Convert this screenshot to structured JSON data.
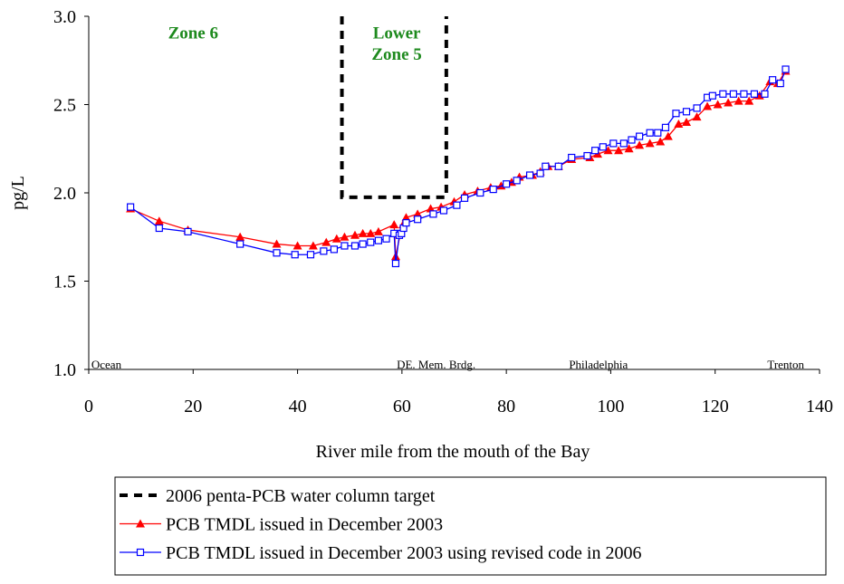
{
  "chart_data": {
    "type": "line",
    "xlabel": "River mile from the mouth of the Bay",
    "ylabel": "pg/L",
    "xlim": [
      0,
      140
    ],
    "xticks": [
      0,
      20,
      40,
      60,
      80,
      100,
      120,
      140
    ],
    "ylim": [
      1,
      3
    ],
    "yticks": [
      {
        "value": 1,
        "label": "1.0"
      },
      {
        "value": 1.5,
        "label": "1.5"
      },
      {
        "value": 2,
        "label": "2.0"
      },
      {
        "value": 2.5,
        "label": "2.5"
      },
      {
        "value": 3,
        "label": "3.0"
      }
    ],
    "annotations": [
      {
        "text": "Zone 6",
        "x": 20,
        "y": 2.9,
        "color": "#1e8a1e",
        "bold": true
      },
      {
        "text": "Lower",
        "x": 59,
        "y": 2.9,
        "color": "#1e8a1e",
        "bold": true
      },
      {
        "text": "Zone 5",
        "x": 59,
        "y": 2.78,
        "color": "#1e8a1e",
        "bold": true
      },
      {
        "text": "Ocean",
        "x": 0.5,
        "y": 1.03,
        "color": "#000000",
        "bold": false
      },
      {
        "text": "DE. Mem. Brdg.",
        "x": 59,
        "y": 1.03,
        "color": "#000000",
        "bold": false
      },
      {
        "text": "Philadelphia",
        "x": 92,
        "y": 1.03,
        "color": "#000000",
        "bold": false
      },
      {
        "text": "Trenton",
        "x": 130,
        "y": 1.03,
        "color": "#000000",
        "bold": false
      }
    ],
    "series": [
      {
        "name": "2006 penta-PCB water column target",
        "color": "#000000",
        "marker": "none",
        "dashed": true,
        "x": [
          48.5,
          48.5,
          68.5,
          68.5
        ],
        "values": [
          3.0,
          1.975,
          1.975,
          3.0
        ]
      },
      {
        "name": "PCB TMDL issued in December 2003",
        "color": "#ff0000",
        "marker": "triangle",
        "dashed": false,
        "x": [
          8,
          13.5,
          19,
          29,
          36,
          40,
          43,
          45.5,
          47.5,
          49,
          51,
          52.5,
          54,
          55.5,
          58.5,
          58.8,
          59.7,
          60.2,
          60.8,
          63,
          65.5,
          67.5,
          70,
          72,
          74.5,
          77,
          79,
          81,
          82.5,
          85,
          86.5,
          88,
          90,
          92.5,
          96,
          97.5,
          99.5,
          101.5,
          103.5,
          105.5,
          107.5,
          109.5,
          111,
          113,
          114.5,
          116.5,
          118.5,
          120.5,
          122.5,
          124.5,
          126.5,
          128.5,
          130.5,
          132,
          133.5
        ],
        "values": [
          1.91,
          1.84,
          1.79,
          1.75,
          1.71,
          1.7,
          1.7,
          1.72,
          1.74,
          1.75,
          1.76,
          1.77,
          1.77,
          1.78,
          1.82,
          1.64,
          1.77,
          1.82,
          1.86,
          1.88,
          1.91,
          1.92,
          1.95,
          1.99,
          2.01,
          2.03,
          2.04,
          2.06,
          2.09,
          2.1,
          2.12,
          2.15,
          2.15,
          2.19,
          2.2,
          2.22,
          2.24,
          2.24,
          2.25,
          2.27,
          2.28,
          2.29,
          2.32,
          2.39,
          2.4,
          2.43,
          2.49,
          2.5,
          2.51,
          2.52,
          2.52,
          2.55,
          2.63,
          2.62,
          2.69
        ]
      },
      {
        "name": "PCB TMDL issued in December 2003 using revised code in 2006",
        "color": "#0000ff",
        "marker": "square",
        "dashed": false,
        "x": [
          8,
          13.5,
          19,
          29,
          36,
          39.5,
          42.5,
          45,
          47,
          49,
          51,
          52.5,
          54,
          55.5,
          57,
          58.5,
          58.8,
          59.5,
          59.9,
          60.3,
          60.8,
          63,
          66,
          68,
          70.5,
          72,
          75,
          77.5,
          80,
          82,
          84.5,
          86.5,
          87.5,
          90,
          92.5,
          95.5,
          97,
          98.5,
          100.5,
          102.5,
          104,
          105.5,
          107.5,
          109,
          110.5,
          112.5,
          114.5,
          116.5,
          118.5,
          119.5,
          121.5,
          123.5,
          125.5,
          127.5,
          129.5,
          131,
          132.5,
          133.5
        ],
        "values": [
          1.92,
          1.8,
          1.78,
          1.71,
          1.66,
          1.65,
          1.65,
          1.67,
          1.68,
          1.7,
          1.7,
          1.71,
          1.72,
          1.73,
          1.74,
          1.77,
          1.6,
          1.76,
          1.77,
          1.8,
          1.83,
          1.85,
          1.88,
          1.9,
          1.93,
          1.97,
          2.0,
          2.02,
          2.05,
          2.07,
          2.1,
          2.11,
          2.15,
          2.15,
          2.2,
          2.21,
          2.24,
          2.26,
          2.28,
          2.28,
          2.3,
          2.32,
          2.34,
          2.34,
          2.37,
          2.45,
          2.46,
          2.48,
          2.54,
          2.55,
          2.56,
          2.56,
          2.56,
          2.56,
          2.56,
          2.64,
          2.62,
          2.7
        ]
      }
    ]
  }
}
